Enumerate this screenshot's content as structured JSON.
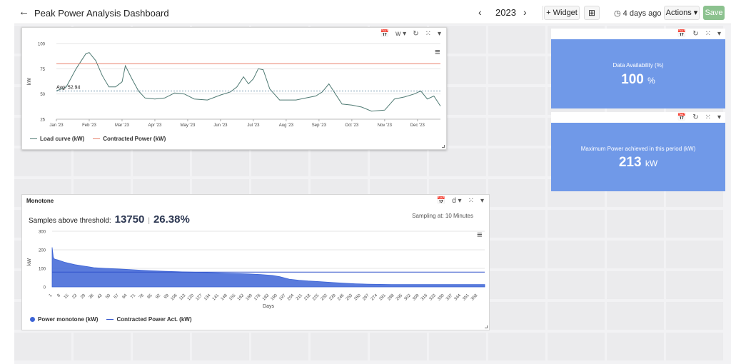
{
  "header": {
    "title": "Peak Power Analysis Dashboard",
    "year": "2023",
    "add_widget": "+ Widget",
    "last_update": "4 days ago",
    "actions": "Actions",
    "save": "Save"
  },
  "load_panel": {
    "granularity": "w",
    "legend": [
      "Load curve (kW)",
      "Contracted Power (kW)"
    ]
  },
  "kpi1": {
    "label": "Data Availability (%)",
    "value": "100",
    "unit": "%"
  },
  "kpi2": {
    "label": "Maximum Power achieved in this period (kW)",
    "value": "213",
    "unit": "kW"
  },
  "mono_panel": {
    "title": "Monotone",
    "granularity": "d",
    "threshold_label": "Samples above threshold:",
    "threshold_count": "13750",
    "threshold_percent": "26.38%",
    "sampling": "Sampling at: 10 Minutes",
    "legend": [
      "Power monotone (kW)",
      "Contracted Power Act. (kW)"
    ]
  },
  "colors": {
    "load_line": "#4f7a73",
    "contracted_line": "#e8826e",
    "avg_line": "#3b6b8a",
    "monotone_fill": "#3d64d6",
    "kpi_bg": "#7099e8",
    "save_bg": "#8cc28f"
  },
  "chart_data": [
    {
      "type": "line",
      "title": "",
      "xlabel": "",
      "ylabel": "kW",
      "ylim": [
        25,
        100
      ],
      "yticks": [
        25,
        50,
        75,
        100
      ],
      "xticks": [
        "Jan '23",
        "Feb '23",
        "Mar '23",
        "Apr '23",
        "May '23",
        "Jun '23",
        "Jul '23",
        "Aug '23",
        "Sep '23",
        "Oct '23",
        "Nov '23",
        "Dec '23"
      ],
      "annotation": "Avg: 52.94",
      "average": 52.94,
      "contracted": 80,
      "series": [
        {
          "name": "Load curve (kW)",
          "x": [
            0,
            0.3,
            0.6,
            0.9,
            1.0,
            1.2,
            1.4,
            1.6,
            1.8,
            2.0,
            2.1,
            2.3,
            2.5,
            2.7,
            3.0,
            3.3,
            3.6,
            3.9,
            4.2,
            4.6,
            5.0,
            5.3,
            5.5,
            5.7,
            5.85,
            6.0,
            6.15,
            6.3,
            6.5,
            6.8,
            7.0,
            7.3,
            7.6,
            7.9,
            8.1,
            8.3,
            8.5,
            8.7,
            9.0,
            9.3,
            9.6,
            10.0,
            10.3,
            10.6,
            10.9,
            11.1,
            11.3,
            11.5,
            11.7
          ],
          "values": [
            53,
            57,
            75,
            90,
            91,
            83,
            68,
            57,
            57,
            62,
            78,
            65,
            53,
            46,
            45,
            46,
            51,
            50,
            45,
            44,
            49,
            52,
            57,
            67,
            60,
            65,
            75,
            74,
            55,
            44,
            44,
            44,
            46,
            48,
            52,
            60,
            50,
            40,
            39,
            37,
            33,
            34,
            45,
            47,
            50,
            53,
            45,
            48,
            38
          ]
        },
        {
          "name": "Contracted Power (kW)",
          "x": [
            0,
            11.7
          ],
          "values": [
            80,
            80
          ]
        }
      ]
    },
    {
      "type": "area",
      "title": "",
      "xlabel": "Days",
      "ylabel": "kW",
      "ylim": [
        0,
        300
      ],
      "yticks": [
        0,
        100,
        200,
        300
      ],
      "xticks": [
        1,
        8,
        15,
        22,
        29,
        36,
        43,
        50,
        57,
        64,
        71,
        78,
        85,
        92,
        99,
        106,
        113,
        120,
        127,
        134,
        141,
        148,
        155,
        162,
        169,
        176,
        183,
        190,
        197,
        204,
        211,
        218,
        225,
        232,
        239,
        246,
        253,
        260,
        267,
        274,
        281,
        288,
        295,
        302,
        309,
        316,
        323,
        330,
        337,
        344,
        351,
        358
      ],
      "contracted": 80,
      "series": [
        {
          "name": "Power monotone (kW)",
          "x": [
            1,
            2,
            3,
            6,
            12,
            20,
            28,
            36,
            46,
            56,
            66,
            76,
            86,
            96,
            106,
            116,
            126,
            136,
            146,
            156,
            166,
            176,
            186,
            192,
            200,
            208,
            216,
            226,
            236,
            246,
            256,
            266,
            276,
            286,
            296,
            306,
            316,
            326,
            336,
            346,
            356,
            364
          ],
          "values": [
            213,
            160,
            150,
            145,
            132,
            120,
            112,
            104,
            100,
            97,
            94,
            90,
            87,
            84,
            82,
            80,
            78,
            76,
            74,
            72,
            70,
            67,
            62,
            55,
            42,
            36,
            32,
            28,
            24,
            20,
            17,
            15,
            14,
            13,
            13,
            13,
            13,
            13,
            13,
            13,
            13,
            13
          ]
        },
        {
          "name": "Contracted Power Act. (kW)",
          "x": [
            1,
            364
          ],
          "values": [
            80,
            80
          ]
        }
      ]
    }
  ]
}
